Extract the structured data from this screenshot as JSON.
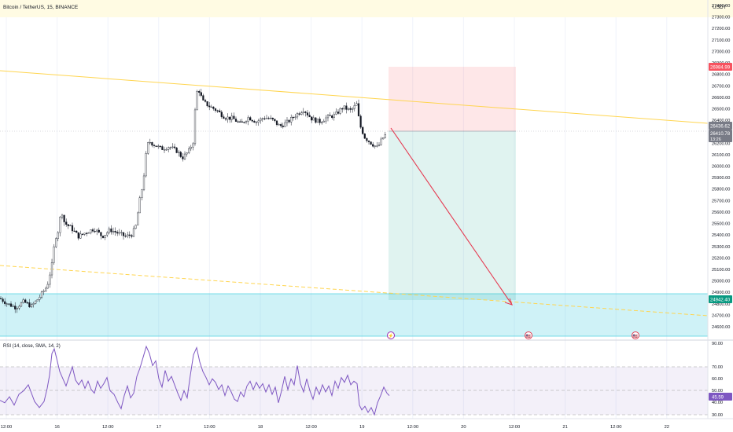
{
  "header": {
    "symbol": "Bitcoin / TetherUS, 15, BINANCE",
    "currency": "USDT"
  },
  "price_axis": {
    "ticks": [
      "27400.00",
      "27300.00",
      "27200.00",
      "27100.00",
      "27000.00",
      "26900.00",
      "26800.00",
      "26700.00",
      "26600.00",
      "26500.00",
      "26400.00",
      "26300.00",
      "26200.00",
      "26100.00",
      "26000.00",
      "25900.00",
      "25800.00",
      "25700.00",
      "25600.00",
      "25500.00",
      "25400.00",
      "25300.00",
      "25200.00",
      "25100.00",
      "25000.00",
      "24900.00",
      "24800.00",
      "24700.00",
      "24600.00"
    ],
    "stop_label": "26984.99",
    "current_label": "26436.62",
    "last_label": "26410.78",
    "countdown": "13:26",
    "target_label": "24942.40"
  },
  "time_axis": {
    "ticks": [
      "12:00",
      "16",
      "12:00",
      "17",
      "12:00",
      "18",
      "12:00",
      "19",
      "12:00",
      "20",
      "12:00",
      "21",
      "12:00",
      "22"
    ]
  },
  "rsi": {
    "label": "RSI (14, close, SMA, 14, 2)",
    "ticks": [
      "90.00",
      "70.00",
      "60.00",
      "50.00",
      "40.00",
      "30.00"
    ],
    "value_label": "45.59",
    "current": 45.59
  },
  "chart_data": {
    "type": "candlestick",
    "symbol": "Bitcoin / TetherUS",
    "interval": "15",
    "exchange": "BINANCE",
    "ylim": [
      24600,
      27450
    ],
    "price_path": [
      [
        0,
        24950
      ],
      [
        10,
        24900
      ],
      [
        20,
        24870
      ],
      [
        30,
        24920
      ],
      [
        40,
        24880
      ],
      [
        50,
        24960
      ],
      [
        60,
        25060
      ],
      [
        66,
        25250
      ],
      [
        70,
        25480
      ],
      [
        74,
        25550
      ],
      [
        78,
        25740
      ],
      [
        82,
        25620
      ],
      [
        90,
        25580
      ],
      [
        100,
        25500
      ],
      [
        110,
        25540
      ],
      [
        120,
        25570
      ],
      [
        130,
        25500
      ],
      [
        140,
        25560
      ],
      [
        150,
        25530
      ],
      [
        160,
        25500
      ],
      [
        168,
        25520
      ],
      [
        173,
        25600
      ],
      [
        177,
        25800
      ],
      [
        180,
        25900
      ],
      [
        183,
        26050
      ],
      [
        186,
        26250
      ],
      [
        189,
        26350
      ],
      [
        195,
        26320
      ],
      [
        205,
        26280
      ],
      [
        215,
        26300
      ],
      [
        225,
        26260
      ],
      [
        232,
        26200
      ],
      [
        240,
        26260
      ],
      [
        246,
        26350
      ],
      [
        249,
        26750
      ],
      [
        252,
        26820
      ],
      [
        258,
        26700
      ],
      [
        266,
        26660
      ],
      [
        276,
        26620
      ],
      [
        286,
        26560
      ],
      [
        296,
        26550
      ],
      [
        306,
        26500
      ],
      [
        316,
        26560
      ],
      [
        326,
        26520
      ],
      [
        336,
        26560
      ],
      [
        346,
        26540
      ],
      [
        356,
        26480
      ],
      [
        366,
        26520
      ],
      [
        376,
        26580
      ],
      [
        386,
        26630
      ],
      [
        396,
        26550
      ],
      [
        406,
        26520
      ],
      [
        416,
        26560
      ],
      [
        426,
        26580
      ],
      [
        436,
        26650
      ],
      [
        446,
        26620
      ],
      [
        454,
        26680
      ],
      [
        457,
        26500
      ],
      [
        464,
        26380
      ],
      [
        472,
        26330
      ],
      [
        480,
        26290
      ],
      [
        486,
        26370
      ],
      [
        492,
        26420
      ]
    ],
    "stop_loss": 26984.99,
    "entry": 26436.62,
    "last_price": 26410.78,
    "target": 24942.4,
    "projected_price_at_target_time": 24870,
    "support_zone": [
      24600,
      24985
    ],
    "event_markers": [
      "⚡",
      "🇺🇸",
      "🇺🇸"
    ],
    "rsi": {
      "levels": [
        70,
        50,
        30
      ],
      "path": [
        [
          0,
          42
        ],
        [
          6,
          40
        ],
        [
          12,
          45
        ],
        [
          18,
          38
        ],
        [
          24,
          47
        ],
        [
          30,
          50
        ],
        [
          36,
          55
        ],
        [
          40,
          48
        ],
        [
          44,
          41
        ],
        [
          50,
          36
        ],
        [
          56,
          41
        ],
        [
          60,
          52
        ],
        [
          63,
          63
        ],
        [
          66,
          81
        ],
        [
          69,
          85
        ],
        [
          72,
          77
        ],
        [
          76,
          66
        ],
        [
          80,
          60
        ],
        [
          84,
          54
        ],
        [
          88,
          62
        ],
        [
          92,
          70
        ],
        [
          96,
          59
        ],
        [
          100,
          55
        ],
        [
          104,
          59
        ],
        [
          108,
          52
        ],
        [
          112,
          58
        ],
        [
          116,
          51
        ],
        [
          120,
          48
        ],
        [
          124,
          58
        ],
        [
          128,
          52
        ],
        [
          132,
          56
        ],
        [
          136,
          61
        ],
        [
          140,
          50
        ],
        [
          145,
          47
        ],
        [
          150,
          40
        ],
        [
          154,
          35
        ],
        [
          158,
          46
        ],
        [
          162,
          54
        ],
        [
          166,
          44
        ],
        [
          170,
          48
        ],
        [
          174,
          62
        ],
        [
          178,
          69
        ],
        [
          182,
          78
        ],
        [
          186,
          87
        ],
        [
          190,
          81
        ],
        [
          194,
          71
        ],
        [
          198,
          75
        ],
        [
          202,
          60
        ],
        [
          206,
          53
        ],
        [
          210,
          67
        ],
        [
          214,
          58
        ],
        [
          218,
          62
        ],
        [
          222,
          55
        ],
        [
          226,
          48
        ],
        [
          230,
          42
        ],
        [
          234,
          50
        ],
        [
          238,
          44
        ],
        [
          242,
          63
        ],
        [
          246,
          80
        ],
        [
          250,
          86
        ],
        [
          254,
          74
        ],
        [
          258,
          66
        ],
        [
          262,
          61
        ],
        [
          266,
          55
        ],
        [
          270,
          60
        ],
        [
          274,
          57
        ],
        [
          278,
          51
        ],
        [
          282,
          55
        ],
        [
          286,
          46
        ],
        [
          290,
          54
        ],
        [
          294,
          49
        ],
        [
          298,
          43
        ],
        [
          302,
          41
        ],
        [
          306,
          49
        ],
        [
          310,
          45
        ],
        [
          314,
          54
        ],
        [
          318,
          58
        ],
        [
          322,
          51
        ],
        [
          326,
          57
        ],
        [
          330,
          52
        ],
        [
          334,
          56
        ],
        [
          338,
          49
        ],
        [
          342,
          55
        ],
        [
          346,
          47
        ],
        [
          350,
          53
        ],
        [
          354,
          40
        ],
        [
          358,
          50
        ],
        [
          362,
          62
        ],
        [
          366,
          51
        ],
        [
          370,
          60
        ],
        [
          374,
          55
        ],
        [
          378,
          71
        ],
        [
          382,
          56
        ],
        [
          386,
          49
        ],
        [
          390,
          60
        ],
        [
          394,
          50
        ],
        [
          398,
          43
        ],
        [
          402,
          53
        ],
        [
          406,
          47
        ],
        [
          410,
          55
        ],
        [
          414,
          49
        ],
        [
          418,
          54
        ],
        [
          422,
          46
        ],
        [
          426,
          58
        ],
        [
          430,
          52
        ],
        [
          434,
          61
        ],
        [
          438,
          57
        ],
        [
          442,
          63
        ],
        [
          446,
          55
        ],
        [
          450,
          58
        ],
        [
          454,
          56
        ],
        [
          457,
          38
        ],
        [
          460,
          34
        ],
        [
          464,
          37
        ],
        [
          468,
          32
        ],
        [
          472,
          36
        ],
        [
          476,
          30
        ],
        [
          480,
          40
        ],
        [
          484,
          46
        ],
        [
          488,
          53
        ],
        [
          492,
          48
        ],
        [
          495,
          46
        ]
      ]
    }
  }
}
